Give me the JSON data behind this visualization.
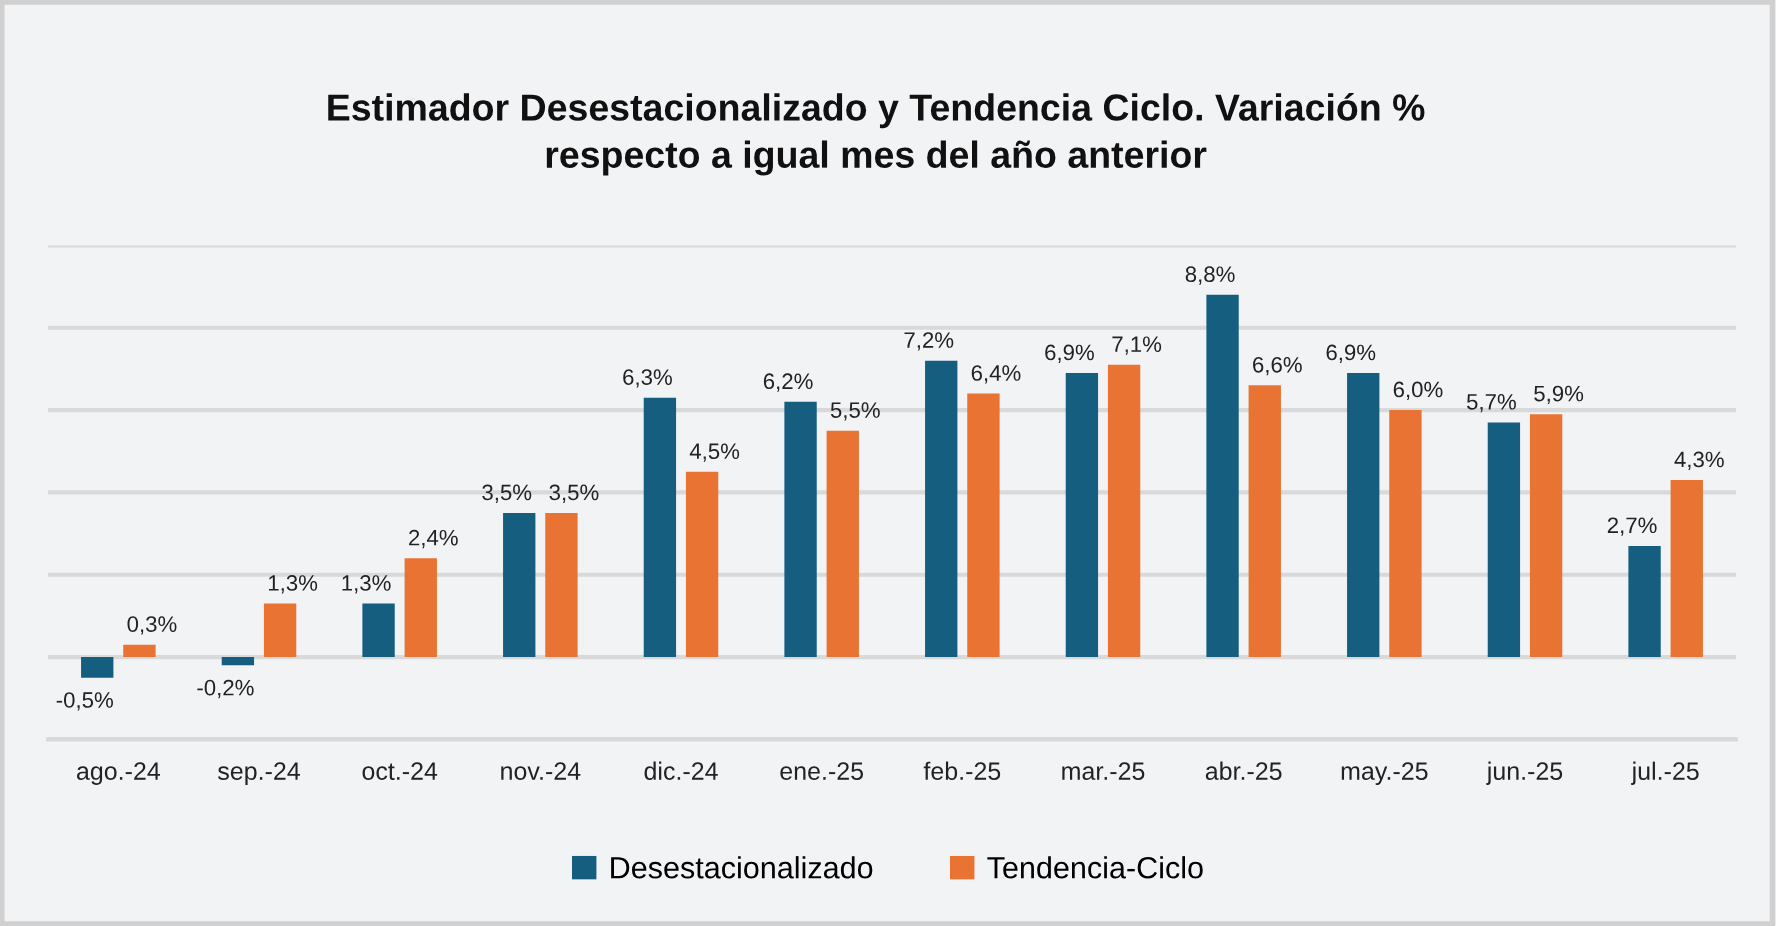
{
  "chart_data": {
    "type": "bar",
    "title": "Estimador Desestacionalizado y Tendencia Ciclo. Variación %\nrespecto a igual mes del año anterior",
    "categories": [
      "ago.-24",
      "sep.-24",
      "oct.-24",
      "nov.-24",
      "dic.-24",
      "ene.-25",
      "feb.-25",
      "mar.-25",
      "abr.-25",
      "may.-25",
      "jun.-25",
      "jul.-25"
    ],
    "series": [
      {
        "name": "Desestacionalizado",
        "color": "#165e80",
        "values": [
          -0.5,
          -0.2,
          1.3,
          3.5,
          6.3,
          6.2,
          7.2,
          6.9,
          8.8,
          6.9,
          5.7,
          2.7
        ],
        "value_labels": [
          "-0,5%",
          "-0,2%",
          "1,3%",
          "3,5%",
          "6,3%",
          "6,2%",
          "7,2%",
          "6,9%",
          "8,8%",
          "6,9%",
          "5,7%",
          "2,7%"
        ]
      },
      {
        "name": "Tendencia-Ciclo",
        "color": "#e87333",
        "values": [
          0.3,
          1.3,
          2.4,
          3.5,
          4.5,
          5.5,
          6.4,
          7.1,
          6.6,
          6.0,
          5.9,
          4.3
        ],
        "value_labels": [
          "0,3%",
          "1,3%",
          "2,4%",
          "3,5%",
          "4,5%",
          "5,5%",
          "6,4%",
          "7,1%",
          "6,6%",
          "6,0%",
          "5,9%",
          "4,3%"
        ]
      }
    ],
    "ylim": [
      -2,
      10
    ],
    "yticks": [
      {
        "value": -2,
        "label": null
      },
      {
        "value": 0,
        "label": null
      },
      {
        "value": 2,
        "label": null
      },
      {
        "value": 4,
        "label": null
      },
      {
        "value": 6,
        "label": null
      },
      {
        "value": 8,
        "label": null
      },
      {
        "value": 10,
        "label": null
      }
    ],
    "grid": "y",
    "legend": "bottom",
    "tick_labels": "x"
  }
}
